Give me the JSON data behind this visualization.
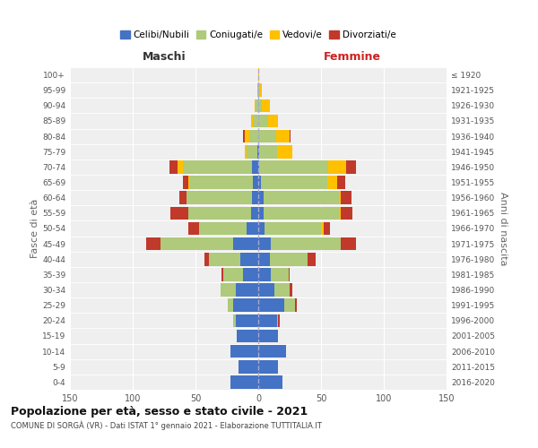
{
  "age_groups": [
    "0-4",
    "5-9",
    "10-14",
    "15-19",
    "20-24",
    "25-29",
    "30-34",
    "35-39",
    "40-44",
    "45-49",
    "50-54",
    "55-59",
    "60-64",
    "65-69",
    "70-74",
    "75-79",
    "80-84",
    "85-89",
    "90-94",
    "95-99",
    "100+"
  ],
  "birth_years": [
    "2016-2020",
    "2011-2015",
    "2006-2010",
    "2001-2005",
    "1996-2000",
    "1991-1995",
    "1986-1990",
    "1981-1985",
    "1976-1980",
    "1971-1975",
    "1966-1970",
    "1961-1965",
    "1956-1960",
    "1951-1955",
    "1946-1950",
    "1941-1945",
    "1936-1940",
    "1931-1935",
    "1926-1930",
    "1921-1925",
    "≤ 1920"
  ],
  "colors": {
    "celibi": "#4472C4",
    "coniugati": "#AECA7A",
    "vedovi": "#FFC000",
    "divorziati": "#C0392B"
  },
  "males": {
    "celibi": [
      22,
      16,
      22,
      17,
      18,
      20,
      18,
      12,
      14,
      20,
      9,
      6,
      5,
      4,
      5,
      1,
      0,
      0,
      0,
      0,
      0
    ],
    "coniugati": [
      0,
      0,
      0,
      0,
      2,
      4,
      12,
      16,
      25,
      58,
      38,
      50,
      52,
      51,
      55,
      8,
      7,
      4,
      2,
      1,
      0
    ],
    "vedovi": [
      0,
      0,
      0,
      0,
      0,
      0,
      0,
      0,
      0,
      0,
      0,
      0,
      0,
      1,
      4,
      2,
      4,
      2,
      1,
      0,
      0
    ],
    "divorziati": [
      0,
      0,
      0,
      0,
      0,
      0,
      0,
      1,
      4,
      11,
      9,
      14,
      6,
      4,
      7,
      0,
      1,
      0,
      0,
      0,
      0
    ]
  },
  "females": {
    "celibi": [
      19,
      16,
      22,
      16,
      15,
      21,
      13,
      10,
      9,
      10,
      5,
      4,
      4,
      2,
      1,
      1,
      0,
      0,
      0,
      0,
      0
    ],
    "coniugati": [
      0,
      0,
      0,
      0,
      1,
      8,
      12,
      14,
      30,
      56,
      45,
      60,
      60,
      53,
      55,
      14,
      14,
      8,
      3,
      1,
      0
    ],
    "vedovi": [
      0,
      0,
      0,
      0,
      0,
      0,
      0,
      0,
      0,
      0,
      2,
      2,
      2,
      8,
      14,
      12,
      11,
      8,
      6,
      2,
      1
    ],
    "divorziati": [
      0,
      0,
      0,
      0,
      1,
      2,
      2,
      1,
      7,
      12,
      5,
      9,
      8,
      6,
      8,
      0,
      1,
      0,
      0,
      0,
      0
    ]
  },
  "title_main": "Popolazione per età, sesso e stato civile - 2021",
  "title_sub": "COMUNE DI SORGÀ (VR) - Dati ISTAT 1° gennaio 2021 - Elaborazione TUTTITALIA.IT",
  "xlabel_left": "Maschi",
  "xlabel_right": "Femmine",
  "ylabel_left": "Fasce di età",
  "ylabel_right": "Anni di nascita",
  "xlim": 150,
  "bg_color": "#ffffff",
  "plot_bg": "#efefef",
  "grid_color": "#ffffff",
  "legend_labels": [
    "Celibi/Nubili",
    "Coniugati/e",
    "Vedovi/e",
    "Divorziati/e"
  ]
}
